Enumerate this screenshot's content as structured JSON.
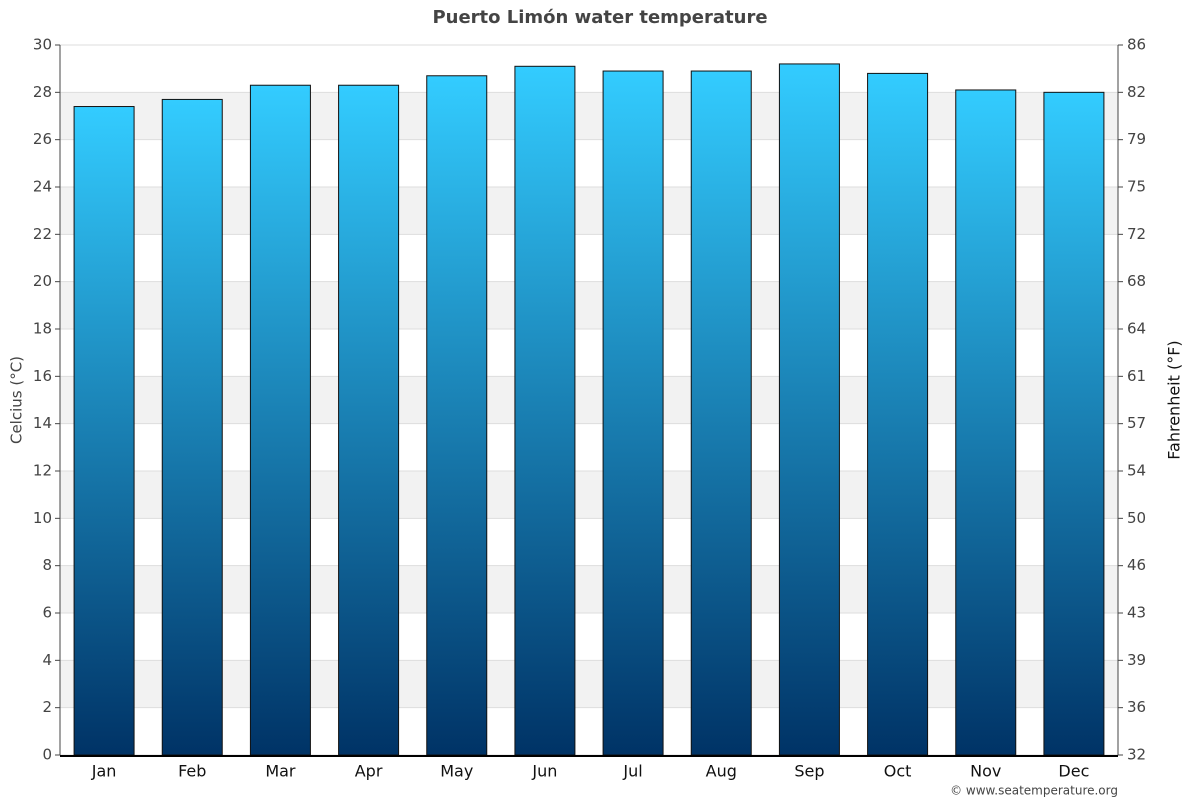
{
  "chart_data": {
    "type": "bar",
    "title": "Puerto Limón water temperature",
    "ylabel": "Celcius (°C)",
    "y2label": "Fahrenheit (°F)",
    "source": "© www.seatemperature.org",
    "categories": [
      "Jan",
      "Feb",
      "Mar",
      "Apr",
      "May",
      "Jun",
      "Jul",
      "Aug",
      "Sep",
      "Oct",
      "Nov",
      "Dec"
    ],
    "values": [
      27.4,
      27.7,
      28.3,
      28.3,
      28.7,
      29.1,
      28.9,
      28.9,
      29.2,
      28.8,
      28.1,
      28.0
    ],
    "gradient": [
      "#33ccff",
      "#003366"
    ],
    "ylim": [
      0,
      30
    ],
    "yticks": [
      0,
      2,
      4,
      6,
      8,
      10,
      12,
      14,
      16,
      18,
      20,
      22,
      24,
      26,
      28,
      30
    ],
    "y2lim": [
      32,
      86
    ],
    "y2ticks": [
      32,
      {
        "value": 35.6,
        "label": "36"
      },
      {
        "value": 39.2,
        "label": "39"
      },
      {
        "value": 42.8,
        "label": "43"
      },
      {
        "value": 46.4,
        "label": "46"
      },
      50,
      {
        "value": 53.6,
        "label": "54"
      },
      {
        "value": 57.2,
        "label": "57"
      },
      {
        "value": 60.8,
        "label": "61"
      },
      {
        "value": 64.4,
        "label": "64"
      },
      68,
      {
        "value": 71.6,
        "label": "72"
      },
      {
        "value": 75.2,
        "label": "75"
      },
      {
        "value": 78.8,
        "label": "79"
      },
      {
        "value": 82.4,
        "label": "82"
      },
      86
    ],
    "grid": true
  }
}
